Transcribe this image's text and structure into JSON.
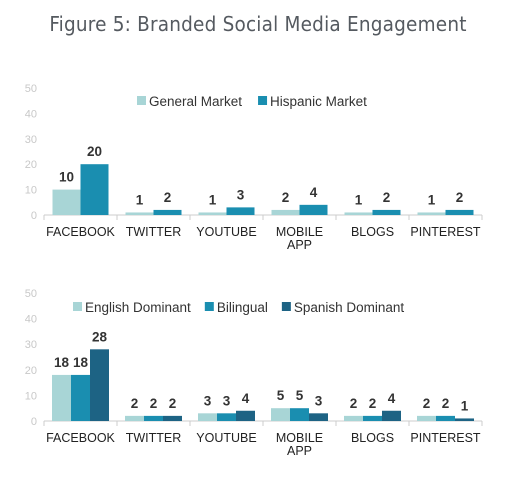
{
  "title": "Figure 5: Branded Social Media Engagement",
  "chart_data": [
    {
      "type": "bar",
      "title": "",
      "categories": [
        [
          "FACEBOOK"
        ],
        [
          "TWITTER"
        ],
        [
          "YOUTUBE"
        ],
        [
          "MOBILE",
          "APP"
        ],
        [
          "BLOGS"
        ],
        [
          "PINTEREST"
        ]
      ],
      "series": [
        {
          "name": "General Market",
          "color": "#a8d5d6",
          "values": [
            10,
            1,
            1,
            2,
            1,
            1
          ]
        },
        {
          "name": "Hispanic Market",
          "color": "#1a8eb0",
          "values": [
            20,
            2,
            3,
            4,
            2,
            2
          ]
        }
      ],
      "ylim": [
        0,
        50
      ],
      "yticks": [
        0,
        10,
        20,
        30,
        40,
        50
      ],
      "grid": false,
      "legend": "top-center"
    },
    {
      "type": "bar",
      "title": "",
      "categories": [
        [
          "FACEBOOK"
        ],
        [
          "TWITTER"
        ],
        [
          "YOUTUBE"
        ],
        [
          "MOBILE",
          "APP"
        ],
        [
          "BLOGS"
        ],
        [
          "PINTEREST"
        ]
      ],
      "series": [
        {
          "name": "English Dominant",
          "color": "#a8d5d6",
          "values": [
            18,
            2,
            3,
            5,
            2,
            2
          ]
        },
        {
          "name": "Bilingual",
          "color": "#1a8eb0",
          "values": [
            18,
            2,
            3,
            5,
            2,
            2
          ]
        },
        {
          "name": "Spanish Dominant",
          "color": "#1d6384",
          "values": [
            28,
            2,
            4,
            3,
            4,
            1
          ]
        }
      ],
      "ylim": [
        0,
        50
      ],
      "yticks": [
        0,
        10,
        20,
        30,
        40,
        50
      ],
      "grid": false,
      "legend": "top-center"
    }
  ]
}
